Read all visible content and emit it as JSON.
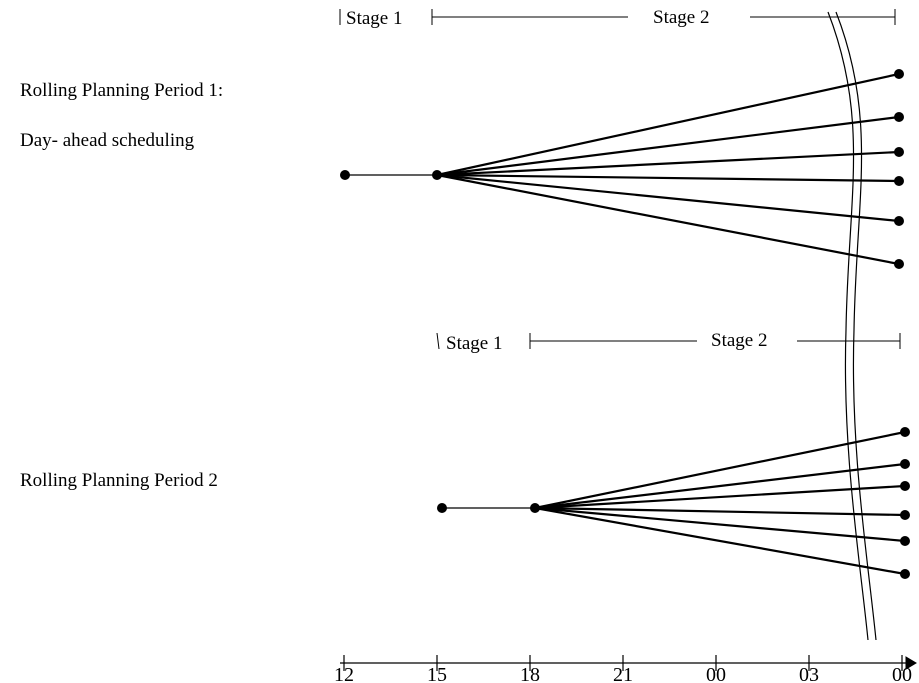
{
  "top_stages": {
    "stage1": "Stage 1",
    "stage2": "Stage 2"
  },
  "period1": {
    "title": "Rolling Planning Period 1:",
    "subtitle": "Day- ahead scheduling"
  },
  "bottom_stages": {
    "stage1": "Stage 1",
    "stage2": "Stage 2"
  },
  "period2": {
    "title": "Rolling Planning Period 2"
  },
  "axis": {
    "ticks": [
      "12",
      "15",
      "18",
      "21",
      "00",
      "03",
      "00"
    ]
  }
}
